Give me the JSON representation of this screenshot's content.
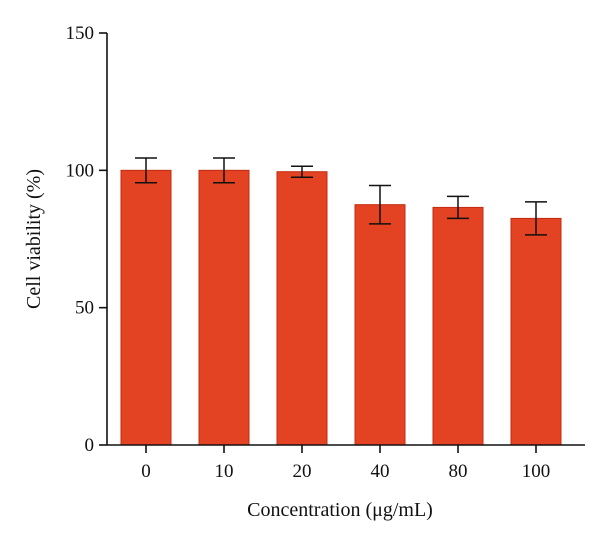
{
  "chart_data": {
    "type": "bar",
    "categories": [
      "0",
      "10",
      "20",
      "40",
      "80",
      "100"
    ],
    "values": [
      100,
      100,
      99.5,
      87.5,
      86.5,
      82.5
    ],
    "errors": [
      4.5,
      4.5,
      2,
      7,
      4,
      6
    ],
    "xlabel": "Concentration (μg/mL)",
    "ylabel": "Cell viability (%)",
    "ylim": [
      0,
      150
    ],
    "yticks": [
      "0",
      "50",
      "100",
      "150"
    ],
    "grid": false,
    "bar_color": "#e34322"
  }
}
